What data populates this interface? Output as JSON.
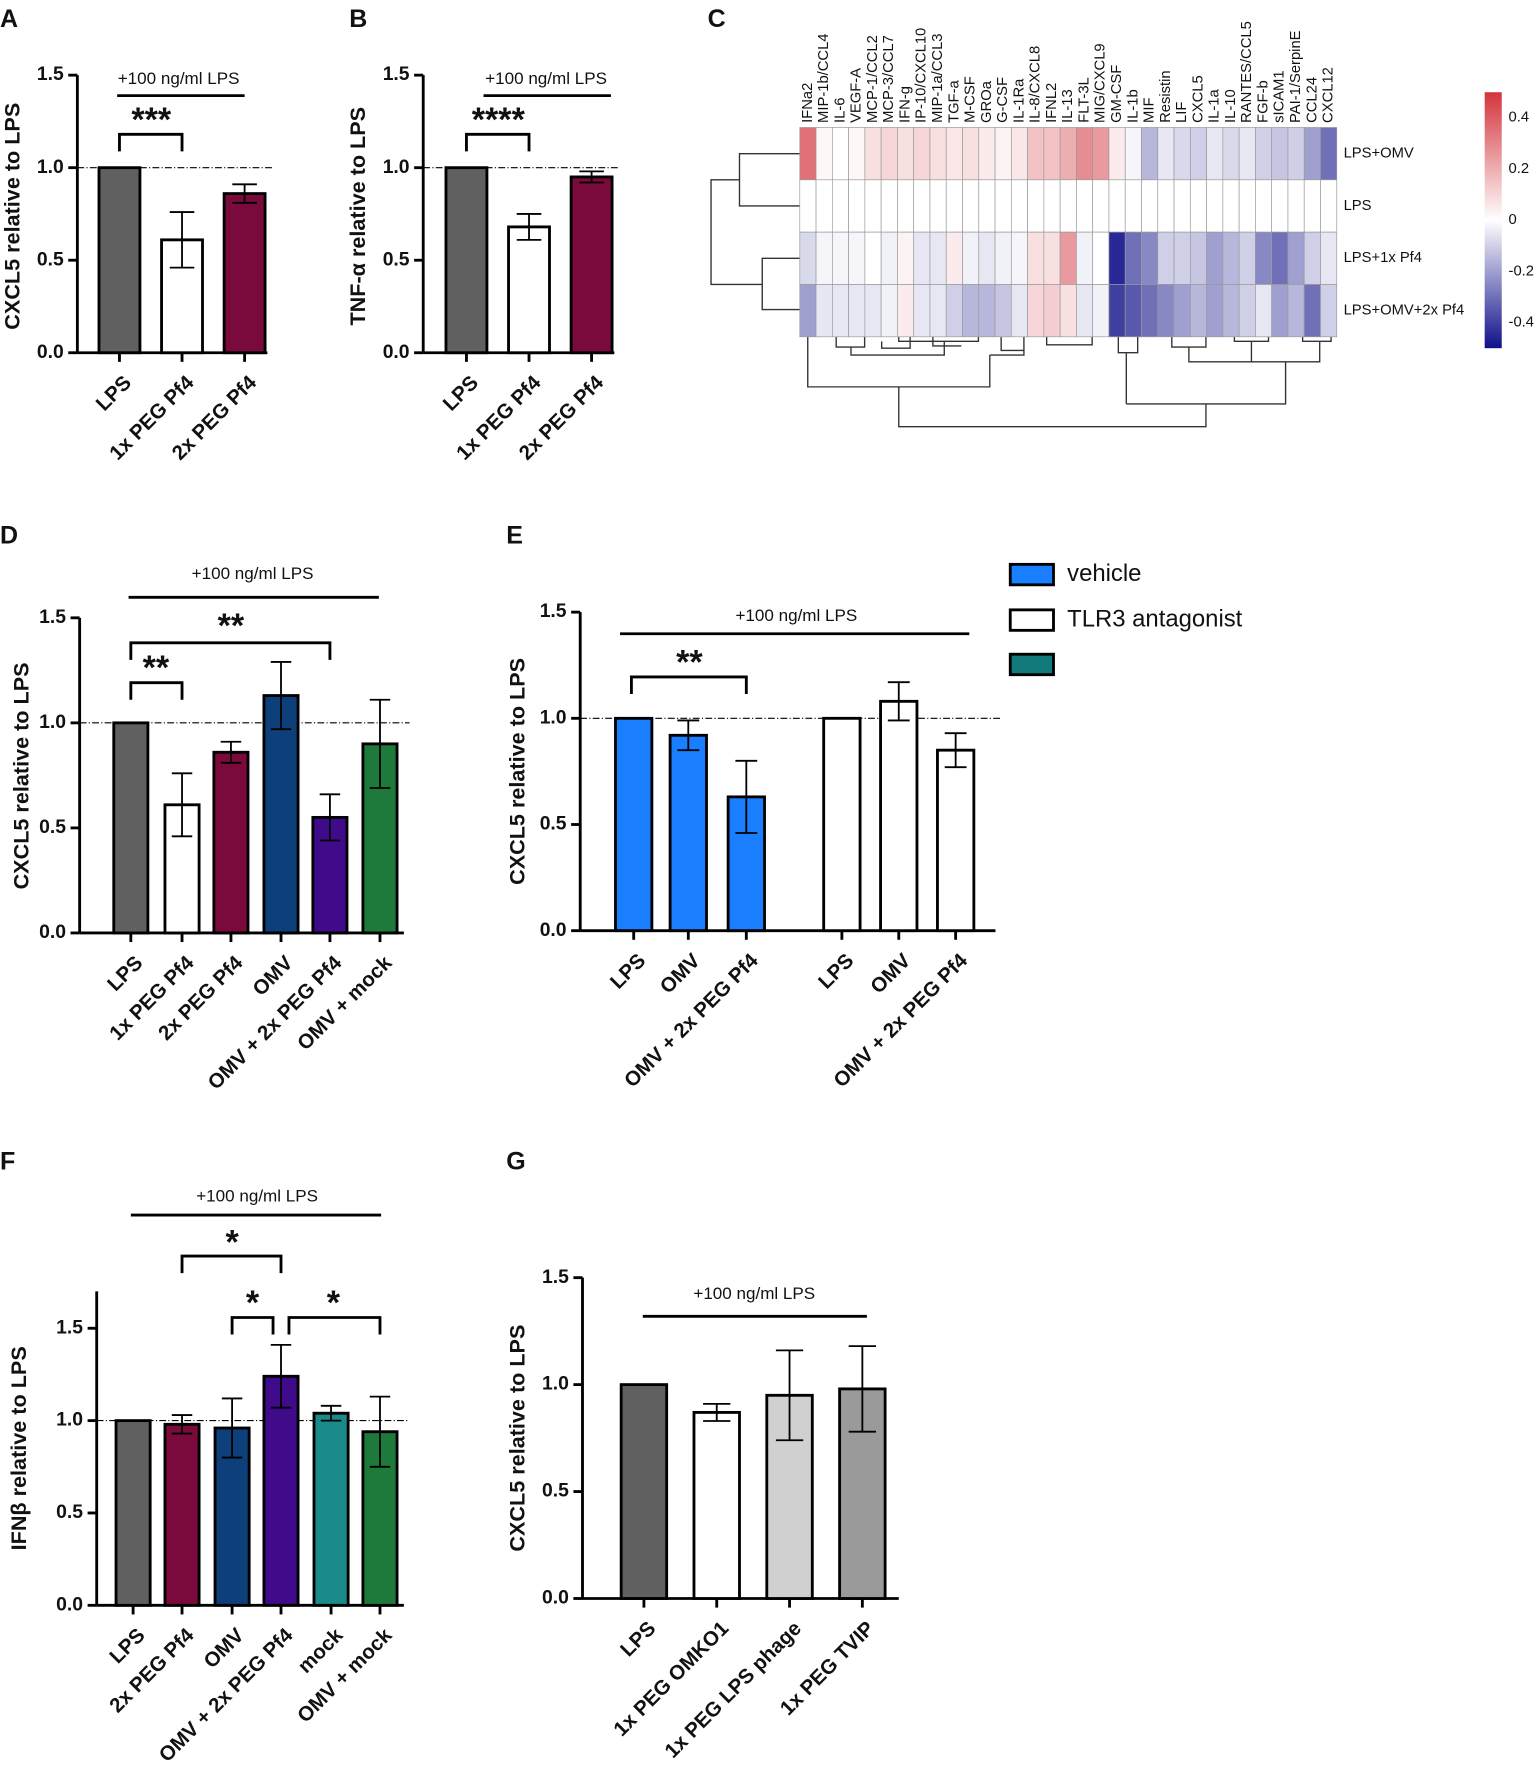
{
  "chart_data": [
    {
      "type": "bar",
      "label": "A",
      "ylabel": "CXCL5 relative to LPS",
      "categories": [
        "LPS",
        "1x PEG Pf4",
        "2x PEG Pf4"
      ],
      "values": [
        1.0,
        0.61,
        0.86
      ],
      "errors": [
        0,
        0.15,
        0.05
      ],
      "colors": [
        "#606060",
        "#ffffff",
        "#7b0a3c"
      ],
      "ylim": [
        0,
        1.5
      ],
      "yticks": [
        {
          "value": 0,
          "label": "0.0"
        },
        0.5,
        {
          "value": 1,
          "label": "1.0"
        },
        1.5
      ],
      "reference_line": 1,
      "annotations": [
        "+100 ng/ml LPS",
        "***"
      ]
    },
    {
      "type": "bar",
      "label": "B",
      "ylabel": "TNF-α relative to LPS",
      "categories": [
        "LPS",
        "1x PEG Pf4",
        "2x PEG Pf4"
      ],
      "values": [
        1.0,
        0.68,
        0.95
      ],
      "errors": [
        0,
        0.07,
        0.03
      ],
      "colors": [
        "#606060",
        "#ffffff",
        "#7b0a3c"
      ],
      "ylim": [
        0,
        1.5
      ],
      "yticks": [
        {
          "value": 0,
          "label": "0.0"
        },
        0.5,
        {
          "value": 1,
          "label": "1.0"
        },
        1.5
      ],
      "reference_line": 1,
      "annotations": [
        "+100 ng/ml LPS",
        "****"
      ]
    },
    {
      "type": "heatmap",
      "label": "C",
      "columns": [
        "IFNa2",
        "MIP-1b/CCL4",
        "IL-6",
        "VEGF-A",
        "MCP-1/CCL2",
        "MCP-3/CCL7",
        "IFN-g",
        "IP-10/CXCL10",
        "MIP-1a/CCL3",
        "TGF-a",
        "M-CSF",
        "GROa",
        "G-CSF",
        "IL-1Ra",
        "IL-8/CXCL8",
        "IFNL2",
        "IL-13",
        "FLT-3L",
        "MIG/CXCL9",
        "GM-CSF",
        "IL-1b",
        "MIF",
        "Resistin",
        "LIF",
        "CXCL5",
        "IL-1a",
        "IL-10",
        "RANTES/CCL5",
        "FGF-b",
        "sICAM1",
        "PAI-1/SerpinE",
        "CCL24",
        "CXCL12"
      ],
      "rows": [
        "LPS+OMV",
        "LPS",
        "LPS+1x Pf4",
        "LPS+OMV+2x Pf4"
      ],
      "values": [
        [
          0.35,
          0.02,
          0,
          0.02,
          0.08,
          0.1,
          0.08,
          0.1,
          0.08,
          0.06,
          0.08,
          0.05,
          0.03,
          0.06,
          0.15,
          0.15,
          0.2,
          0.28,
          0.25,
          0.05,
          -0.02,
          -0.15,
          -0.05,
          -0.08,
          -0.1,
          -0.05,
          -0.08,
          -0.05,
          -0.1,
          -0.12,
          -0.1,
          -0.2,
          -0.3
        ],
        [
          0,
          0,
          0,
          0,
          0,
          0,
          0,
          0,
          0,
          0,
          0,
          0,
          0,
          0,
          0,
          0,
          0,
          0,
          0,
          0,
          0,
          0,
          0,
          0,
          0,
          0,
          0,
          0,
          0,
          0,
          0,
          0,
          0
        ],
        [
          -0.08,
          -0.02,
          -0.02,
          -0.02,
          0,
          -0.03,
          0.03,
          -0.05,
          -0.05,
          0.05,
          -0.03,
          -0.05,
          -0.03,
          -0.02,
          0.08,
          0.08,
          0.25,
          -0.03,
          0,
          -0.45,
          -0.3,
          -0.25,
          -0.1,
          -0.1,
          -0.12,
          -0.2,
          -0.15,
          -0.1,
          -0.25,
          -0.3,
          -0.2,
          -0.1,
          -0.05
        ],
        [
          -0.2,
          -0.05,
          -0.05,
          -0.05,
          -0.05,
          -0.03,
          0.05,
          -0.05,
          -0.05,
          -0.1,
          -0.15,
          -0.15,
          -0.12,
          -0.05,
          0.1,
          0.12,
          0.08,
          -0.05,
          -0.03,
          -0.4,
          -0.35,
          -0.3,
          -0.25,
          -0.2,
          -0.15,
          -0.2,
          -0.15,
          -0.1,
          -0.05,
          -0.2,
          -0.15,
          -0.3,
          -0.1
        ]
      ],
      "zlim": [
        -0.5,
        0.5
      ],
      "colormap": [
        "#10108a",
        "#ffffff",
        "#d3343c"
      ],
      "colorbar_ticks": [
        0.4,
        0.2,
        0,
        -0.2,
        -0.4
      ]
    },
    {
      "type": "bar",
      "label": "D",
      "ylabel": "CXCL5 relative to LPS",
      "categories": [
        "LPS",
        "1x PEG Pf4",
        "2x PEG Pf4",
        "OMV",
        "OMV + 2x PEG Pf4",
        "OMV + mock"
      ],
      "values": [
        1.0,
        0.61,
        0.86,
        1.13,
        0.55,
        0.9
      ],
      "errors": [
        0,
        0.15,
        0.05,
        0.16,
        0.11,
        0.21
      ],
      "colors": [
        "#606060",
        "#ffffff",
        "#7b0a3c",
        "#0d3f7a",
        "#3f0b8a",
        "#1d7a3a"
      ],
      "ylim": [
        0,
        1.5
      ],
      "yticks": [
        {
          "value": 0,
          "label": "0.0"
        },
        0.5,
        {
          "value": 1,
          "label": "1.0"
        },
        1.5
      ],
      "reference_line": 1,
      "annotations": [
        "+100 ng/ml LPS",
        "**",
        "**"
      ]
    },
    {
      "type": "grouped_bar",
      "label": "E",
      "ylabel": "CXCL5 relative to LPS",
      "categories": [
        "LPS",
        "OMV",
        "OMV + 2x PEG Pf4"
      ],
      "series": [
        {
          "name": "vehicle",
          "color": "#1a7fff",
          "values": [
            1.0,
            0.92,
            0.63
          ],
          "errors": [
            0,
            0.07,
            0.17
          ]
        },
        {
          "name": "TLR3 antagonist",
          "color": "#ffffff",
          "values": [
            1.0,
            1.08,
            0.85
          ],
          "errors": [
            0,
            0.09,
            0.08
          ]
        }
      ],
      "ylim": [
        0,
        1.5
      ],
      "yticks": [
        {
          "value": 0,
          "label": "0.0"
        },
        0.5,
        {
          "value": 1,
          "label": "1.0"
        },
        1.5
      ],
      "reference_line": 1,
      "annotations": [
        "+100 ng/ml LPS",
        "**"
      ]
    },
    {
      "type": "bar",
      "label": "F",
      "ylabel": "IFNβ relative to LPS",
      "categories": [
        "LPS",
        "2x PEG Pf4",
        "OMV",
        "OMV + 2x PEG Pf4",
        "mock",
        "OMV + mock"
      ],
      "values": [
        1.0,
        0.98,
        0.96,
        1.24,
        1.04,
        0.94
      ],
      "errors": [
        0,
        0.05,
        0.16,
        0.17,
        0.04,
        0.19
      ],
      "colors": [
        "#606060",
        "#7b0a3c",
        "#0d3f7a",
        "#3f0b8a",
        "#1a8a8a",
        "#1d7a3a"
      ],
      "ylim": [
        0,
        1.7
      ],
      "yticks": [
        {
          "value": 0,
          "label": "0.0"
        },
        0.5,
        {
          "value": 1,
          "label": "1.0"
        },
        1.5
      ],
      "reference_line": 1,
      "annotations": [
        "+100 ng/ml LPS",
        "*",
        "*",
        "*"
      ]
    },
    {
      "type": "bar",
      "label": "G",
      "ylabel": "CXCL5 relative to LPS",
      "categories": [
        "LPS",
        "1x PEG OMKO1",
        "1x PEG LPS phage",
        "1x PEG TVIP"
      ],
      "values": [
        1.0,
        0.87,
        0.95,
        0.98
      ],
      "errors": [
        0,
        0.04,
        0.21,
        0.2
      ],
      "colors": [
        "#606060",
        "#ffffff",
        "#d0d0d0",
        "#9a9a9a"
      ],
      "ylim": [
        0,
        1.5
      ],
      "yticks": [
        {
          "value": 0,
          "label": "0.0"
        },
        0.5,
        {
          "value": 1,
          "label": "1.0"
        },
        1.5
      ],
      "annotations": [
        "+100 ng/ml LPS"
      ]
    }
  ]
}
